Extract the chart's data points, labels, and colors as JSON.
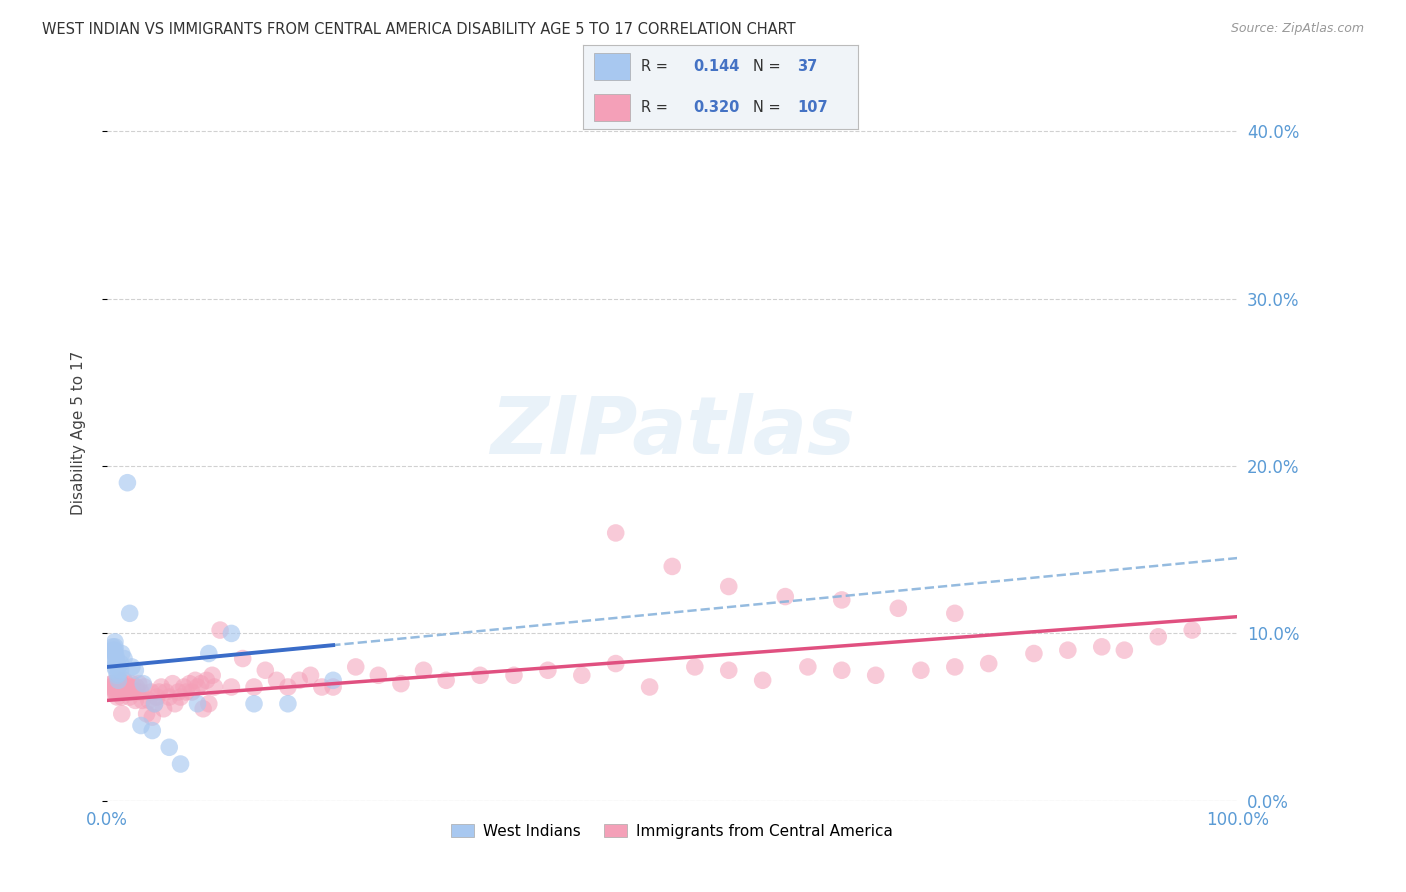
{
  "title": "WEST INDIAN VS IMMIGRANTS FROM CENTRAL AMERICA DISABILITY AGE 5 TO 17 CORRELATION CHART",
  "source": "Source: ZipAtlas.com",
  "ylabel": "Disability Age 5 to 17",
  "r_west_indian": 0.144,
  "n_west_indian": 37,
  "r_central_america": 0.32,
  "n_central_america": 107,
  "color_west_indian": "#A8C8F0",
  "color_central_america": "#F4A0B8",
  "color_west_indian_line": "#3A6CC8",
  "color_central_america_line": "#E05080",
  "color_dashed_line": "#8AB4DC",
  "background_color": "#FFFFFF",
  "west_indian_x": [
    0.005,
    0.005,
    0.005,
    0.007,
    0.007,
    0.007,
    0.007,
    0.007,
    0.007,
    0.008,
    0.008,
    0.008,
    0.009,
    0.009,
    0.01,
    0.01,
    0.01,
    0.012,
    0.012,
    0.013,
    0.015,
    0.018,
    0.02,
    0.022,
    0.025,
    0.03,
    0.032,
    0.04,
    0.042,
    0.055,
    0.065,
    0.08,
    0.09,
    0.11,
    0.13,
    0.16,
    0.2
  ],
  "west_indian_y": [
    0.085,
    0.09,
    0.092,
    0.08,
    0.085,
    0.088,
    0.09,
    0.092,
    0.095,
    0.078,
    0.082,
    0.086,
    0.075,
    0.082,
    0.072,
    0.076,
    0.08,
    0.078,
    0.082,
    0.088,
    0.085,
    0.19,
    0.112,
    0.08,
    0.078,
    0.045,
    0.07,
    0.042,
    0.058,
    0.032,
    0.022,
    0.058,
    0.088,
    0.1,
    0.058,
    0.058,
    0.072
  ],
  "central_america_x": [
    0.003,
    0.004,
    0.005,
    0.005,
    0.006,
    0.007,
    0.007,
    0.008,
    0.008,
    0.009,
    0.009,
    0.01,
    0.01,
    0.011,
    0.011,
    0.012,
    0.012,
    0.013,
    0.013,
    0.015,
    0.015,
    0.016,
    0.017,
    0.018,
    0.019,
    0.02,
    0.021,
    0.022,
    0.023,
    0.025,
    0.026,
    0.027,
    0.028,
    0.03,
    0.031,
    0.033,
    0.035,
    0.037,
    0.039,
    0.04,
    0.042,
    0.044,
    0.046,
    0.048,
    0.05,
    0.052,
    0.055,
    0.058,
    0.06,
    0.063,
    0.065,
    0.068,
    0.07,
    0.073,
    0.075,
    0.078,
    0.08,
    0.083,
    0.085,
    0.088,
    0.09,
    0.093,
    0.095,
    0.1,
    0.11,
    0.12,
    0.13,
    0.14,
    0.15,
    0.16,
    0.17,
    0.18,
    0.19,
    0.2,
    0.22,
    0.24,
    0.26,
    0.28,
    0.3,
    0.33,
    0.36,
    0.39,
    0.42,
    0.45,
    0.48,
    0.52,
    0.55,
    0.58,
    0.62,
    0.65,
    0.68,
    0.72,
    0.75,
    0.78,
    0.82,
    0.85,
    0.88,
    0.9,
    0.93,
    0.96,
    0.45,
    0.5,
    0.55,
    0.6,
    0.65,
    0.7,
    0.75
  ],
  "central_america_y": [
    0.068,
    0.07,
    0.065,
    0.07,
    0.068,
    0.065,
    0.07,
    0.065,
    0.068,
    0.062,
    0.068,
    0.065,
    0.07,
    0.068,
    0.072,
    0.065,
    0.07,
    0.052,
    0.062,
    0.065,
    0.072,
    0.065,
    0.07,
    0.068,
    0.065,
    0.062,
    0.068,
    0.07,
    0.065,
    0.06,
    0.068,
    0.065,
    0.07,
    0.065,
    0.06,
    0.068,
    0.052,
    0.06,
    0.065,
    0.05,
    0.058,
    0.062,
    0.065,
    0.068,
    0.055,
    0.065,
    0.062,
    0.07,
    0.058,
    0.065,
    0.062,
    0.068,
    0.065,
    0.07,
    0.065,
    0.072,
    0.068,
    0.07,
    0.055,
    0.072,
    0.058,
    0.075,
    0.068,
    0.102,
    0.068,
    0.085,
    0.068,
    0.078,
    0.072,
    0.068,
    0.072,
    0.075,
    0.068,
    0.068,
    0.08,
    0.075,
    0.07,
    0.078,
    0.072,
    0.075,
    0.075,
    0.078,
    0.075,
    0.082,
    0.068,
    0.08,
    0.078,
    0.072,
    0.08,
    0.078,
    0.075,
    0.078,
    0.08,
    0.082,
    0.088,
    0.09,
    0.092,
    0.09,
    0.098,
    0.102,
    0.16,
    0.14,
    0.128,
    0.122,
    0.12,
    0.115,
    0.112
  ],
  "xlim": [
    0.0,
    1.0
  ],
  "ylim": [
    0.0,
    0.44
  ],
  "yticks": [
    0.0,
    0.1,
    0.2,
    0.3,
    0.4
  ],
  "ytick_labels": [
    "0.0%",
    "10.0%",
    "20.0%",
    "30.0%",
    "40.0%"
  ],
  "xticks": [
    0.0,
    0.25,
    0.5,
    0.75,
    1.0
  ],
  "xtick_labels": [
    "0.0%",
    "",
    "",
    "",
    "100.0%"
  ]
}
